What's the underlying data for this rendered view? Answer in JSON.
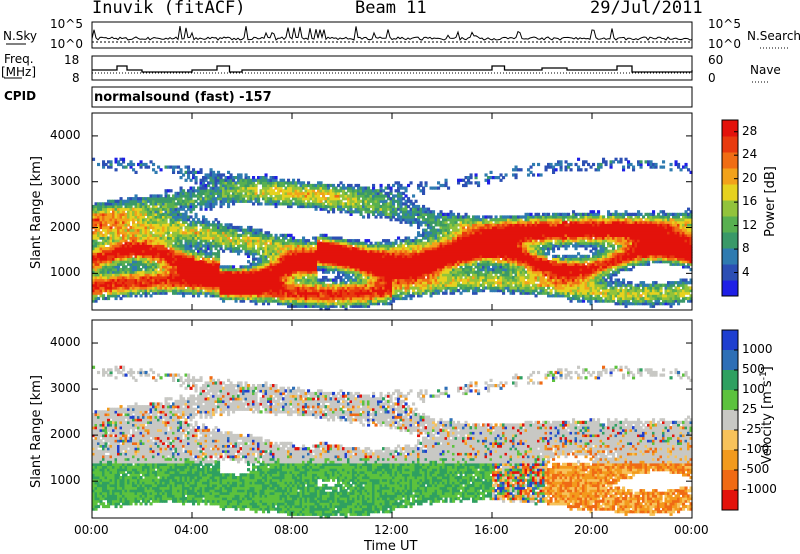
{
  "header": {
    "title": "Inuvik (fitACF)",
    "beam": "Beam 11",
    "date": "29/Jul/2011"
  },
  "top_panels": {
    "nsky_label": "N.Sky",
    "nsearch_label": "N.Search",
    "noise_ticks": [
      "10^5",
      "10^0"
    ],
    "freq_label_1": "Freq.",
    "freq_label_2": "[MHz]",
    "freq_ticks": [
      "18",
      "8"
    ],
    "nave_label": "Nave",
    "nave_ticks": [
      "60",
      "0"
    ],
    "cpid_label": "CPID",
    "cpid_value": "normalsound (fast) -157"
  },
  "chart_data": [
    {
      "type": "heatmap",
      "title": "Power",
      "ylabel": "Slant Range [km]",
      "xlabel": "Time UT",
      "x_ticks": [
        "00:00",
        "04:00",
        "08:00",
        "12:00",
        "16:00",
        "20:00",
        "00:00"
      ],
      "y_ticks": [
        "1000",
        "2000",
        "3000",
        "4000"
      ],
      "xlim_hours": [
        0,
        24
      ],
      "ylim_km": [
        200,
        4500
      ],
      "colorbar_label": "Power [dB]",
      "colorbar_ticks": [
        "4",
        "8",
        "12",
        "16",
        "20",
        "24",
        "28"
      ],
      "colorbar_range": [
        0,
        30
      ],
      "colors": [
        "#1f1fe6",
        "#2c4fb4",
        "#2f7bb0",
        "#3a9968",
        "#58b050",
        "#92c33b",
        "#e6d21f",
        "#f2a21a",
        "#f06d14",
        "#e83a0e",
        "#e3120b"
      ]
    },
    {
      "type": "heatmap",
      "title": "Velocity",
      "ylabel": "Slant Range [km]",
      "xlabel": "Time UT",
      "x_ticks": [
        "00:00",
        "04:00",
        "08:00",
        "12:00",
        "16:00",
        "20:00",
        "00:00"
      ],
      "y_ticks": [
        "1000",
        "2000",
        "3000",
        "4000"
      ],
      "xlim_hours": [
        0,
        24
      ],
      "ylim_km": [
        200,
        4500
      ],
      "colorbar_label": "Velocity [m s",
      "colorbar_label_sup": "-1",
      "colorbar_label_end": "]",
      "colorbar_ticks": [
        "1000",
        "500",
        "100",
        "25",
        "-25",
        "-100",
        "-500",
        "-1000"
      ],
      "colors": [
        "#1f3fd0",
        "#2e6fb6",
        "#2fa060",
        "#5cc23d",
        "#c8c8c4",
        "#f7c25a",
        "#f39a1c",
        "#f06a14",
        "#e3120b"
      ],
      "ground_scatter_color": "#c8c8c4"
    }
  ],
  "xaxis_label": "Time UT"
}
